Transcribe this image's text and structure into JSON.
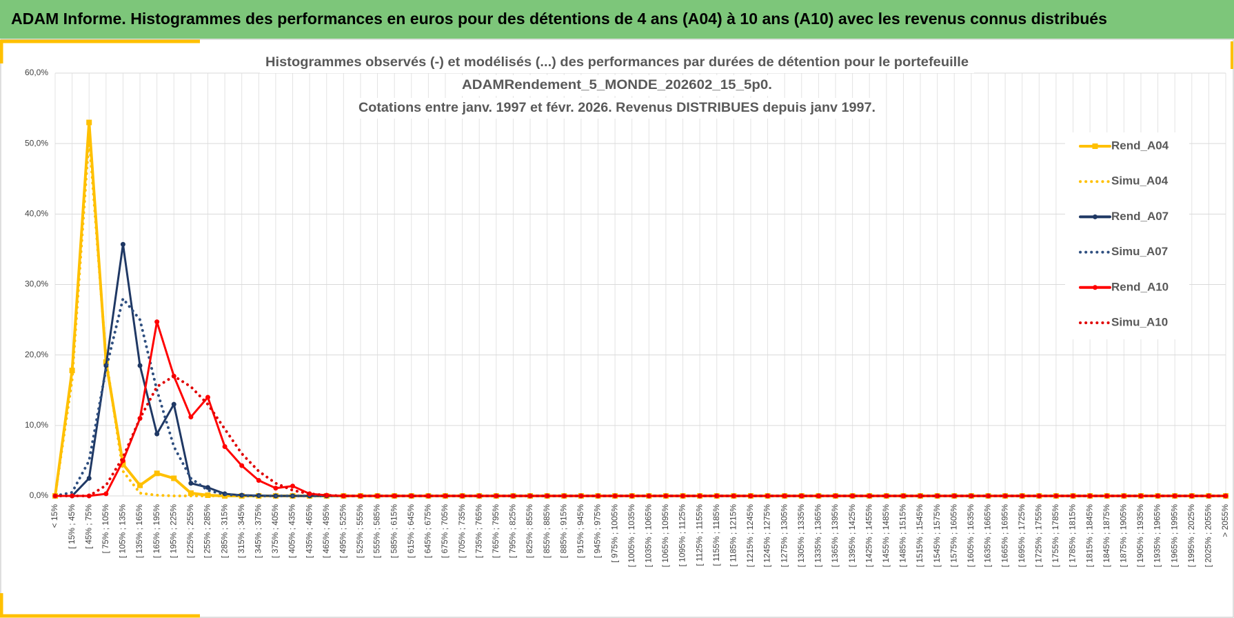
{
  "header": {
    "title": "ADAM Informe. Histogrammes des performances en euros pour des détentions de 4 ans (A04) à 10 ans (A10) avec les revenus connus distribués"
  },
  "chart_data": {
    "type": "line",
    "title": [
      "Histogrammes observés (-) et modélisés (...) des performances par durées de détention pour le portefeuille",
      "ADAMRendement_5_MONDE_202602_15_5p0.",
      "Cotations entre janv. 1997 et févr. 2026. Revenus DISTRIBUES depuis janv 1997."
    ],
    "categories": [
      "< 15%",
      "[ 15% ; 45%",
      "[ 45% ; 75%",
      "[ 75% ; 105%",
      "[ 105% ; 135%",
      "[ 135% ; 165%",
      "[ 165% ; 195%",
      "[ 195% ; 225%",
      "[ 225% ; 255%",
      "[ 255% ; 285%",
      "[ 285% ; 315%",
      "[ 315% ; 345%",
      "[ 345% ; 375%",
      "[ 375% ; 405%",
      "[ 405% ; 435%",
      "[ 435% ; 465%",
      "[ 465% ; 495%",
      "[ 495% ; 525%",
      "[ 525% ; 555%",
      "[ 555% ; 585%",
      "[ 585% ; 615%",
      "[ 615% ; 645%",
      "[ 645% ; 675%",
      "[ 675% ; 705%",
      "[ 705% ; 735%",
      "[ 735% ; 765%",
      "[ 765% ; 795%",
      "[ 795% ; 825%",
      "[ 825% ; 855%",
      "[ 855% ; 885%",
      "[ 885% ; 915%",
      "[ 915% ; 945%",
      "[ 945% ; 975%",
      "[ 975% ; 1005%",
      "[ 1005% ; 1035%",
      "[ 1035% ; 1065%",
      "[ 1065% ; 1095%",
      "[ 1095% ; 1125%",
      "[ 1125% ; 1155%",
      "[ 1155% ; 1185%",
      "[ 1185% ; 1215%",
      "[ 1215% ; 1245%",
      "[ 1245% ; 1275%",
      "[ 1275% ; 1305%",
      "[ 1305% ; 1335%",
      "[ 1335% ; 1365%",
      "[ 1365% ; 1395%",
      "[ 1395% ; 1425%",
      "[ 1425% ; 1455%",
      "[ 1455% ; 1485%",
      "[ 1485% ; 1515%",
      "[ 1515% ; 1545%",
      "[ 1545% ; 1575%",
      "[ 1575% ; 1605%",
      "[ 1605% ; 1635%",
      "[ 1635% ; 1665%",
      "[ 1665% ; 1695%",
      "[ 1695% ; 1725%",
      "[ 1725% ; 1755%",
      "[ 1755% ; 1785%",
      "[ 1785% ; 1815%",
      "[ 1815% ; 1845%",
      "[ 1845% ; 1875%",
      "[ 1875% ; 1905%",
      "[ 1905% ; 1935%",
      "[ 1935% ; 1965%",
      "[ 1965% ; 1995%",
      "[ 1995% ; 2025%",
      "[ 2025% ; 2055%",
      "> 2055%"
    ],
    "series": [
      {
        "name": "Rend_A04",
        "color": "#ffc000",
        "style": "solid",
        "marker": "square",
        "values": [
          0,
          17.8,
          53,
          19,
          4.5,
          1.5,
          3.2,
          2.5,
          0.4,
          0.1,
          0,
          0,
          0,
          0,
          0,
          0,
          0,
          0,
          0,
          0,
          0,
          0,
          0,
          0,
          0,
          0,
          0,
          0,
          0,
          0,
          0,
          0,
          0,
          0,
          0,
          0,
          0,
          0,
          0,
          0,
          0,
          0,
          0,
          0,
          0,
          0,
          0,
          0,
          0,
          0,
          0,
          0,
          0,
          0,
          0,
          0,
          0,
          0,
          0,
          0,
          0,
          0,
          0,
          0,
          0,
          0,
          0,
          0,
          0,
          0
        ]
      },
      {
        "name": "Simu_A04",
        "color": "#ffc000",
        "style": "dotted",
        "values": [
          0,
          16.5,
          51,
          19.5,
          3.5,
          0.4,
          0.1,
          0,
          0,
          0,
          0,
          0,
          0,
          0,
          0,
          0,
          0,
          0,
          0,
          0,
          0,
          0,
          0,
          0,
          0,
          0,
          0,
          0,
          0,
          0,
          0,
          0,
          0,
          0,
          0,
          0,
          0,
          0,
          0,
          0,
          0,
          0,
          0,
          0,
          0,
          0,
          0,
          0,
          0,
          0,
          0,
          0,
          0,
          0,
          0,
          0,
          0,
          0,
          0,
          0,
          0,
          0,
          0,
          0,
          0,
          0,
          0,
          0,
          0,
          0
        ]
      },
      {
        "name": "Rend_A07",
        "color": "#1f3864",
        "style": "solid",
        "marker": "circle",
        "values": [
          0,
          0,
          2.5,
          18.5,
          35.7,
          18.5,
          8.8,
          13,
          1.8,
          1.2,
          0.3,
          0.1,
          0.05,
          0,
          0,
          0,
          0,
          0,
          0,
          0,
          0,
          0,
          0,
          0,
          0,
          0,
          0,
          0,
          0,
          0,
          0,
          0,
          0,
          0,
          0,
          0,
          0,
          0,
          0,
          0,
          0,
          0,
          0,
          0,
          0,
          0,
          0,
          0,
          0,
          0,
          0,
          0,
          0,
          0,
          0,
          0,
          0,
          0,
          0,
          0,
          0,
          0,
          0,
          0,
          0,
          0,
          0,
          0,
          0,
          0
        ]
      },
      {
        "name": "Simu_A07",
        "color": "#2f4f80",
        "style": "dotted",
        "values": [
          0,
          0.5,
          5,
          18,
          28,
          25,
          15,
          7,
          2.5,
          0.8,
          0.2,
          0.05,
          0,
          0,
          0,
          0,
          0,
          0,
          0,
          0,
          0,
          0,
          0,
          0,
          0,
          0,
          0,
          0,
          0,
          0,
          0,
          0,
          0,
          0,
          0,
          0,
          0,
          0,
          0,
          0,
          0,
          0,
          0,
          0,
          0,
          0,
          0,
          0,
          0,
          0,
          0,
          0,
          0,
          0,
          0,
          0,
          0,
          0,
          0,
          0,
          0,
          0,
          0,
          0,
          0,
          0,
          0,
          0,
          0,
          0
        ]
      },
      {
        "name": "Rend_A10",
        "color": "#ff0000",
        "style": "solid",
        "marker": "circle",
        "values": [
          0,
          0,
          0,
          0.3,
          5,
          11,
          24.7,
          17,
          11.2,
          14,
          7,
          4.3,
          2.2,
          1.1,
          1.4,
          0.3,
          0.1,
          0,
          0,
          0,
          0,
          0,
          0,
          0,
          0,
          0,
          0,
          0,
          0,
          0,
          0,
          0,
          0,
          0,
          0,
          0,
          0,
          0,
          0,
          0,
          0,
          0,
          0,
          0,
          0,
          0,
          0,
          0,
          0,
          0,
          0,
          0,
          0,
          0,
          0,
          0,
          0,
          0,
          0,
          0,
          0,
          0,
          0,
          0,
          0,
          0,
          0,
          0,
          0,
          0
        ]
      },
      {
        "name": "Simu_A10",
        "color": "#e00000",
        "style": "dotted",
        "values": [
          0,
          0,
          0,
          1.5,
          5.5,
          11,
          15.5,
          17,
          15.5,
          13,
          9.5,
          6,
          3.5,
          1.8,
          0.8,
          0.3,
          0.1,
          0,
          0,
          0,
          0,
          0,
          0,
          0,
          0,
          0,
          0,
          0,
          0,
          0,
          0,
          0,
          0,
          0,
          0,
          0,
          0,
          0,
          0,
          0,
          0,
          0,
          0,
          0,
          0,
          0,
          0,
          0,
          0,
          0,
          0,
          0,
          0,
          0,
          0,
          0,
          0,
          0,
          0,
          0,
          0,
          0,
          0,
          0,
          0,
          0,
          0,
          0,
          0,
          0
        ]
      }
    ],
    "ylim": [
      0,
      60
    ],
    "yticks": [
      {
        "value": 0,
        "label": "0,0%"
      },
      {
        "value": 10,
        "label": "10,0%"
      },
      {
        "value": 20,
        "label": "20,0%"
      },
      {
        "value": 30,
        "label": "30,0%"
      },
      {
        "value": 40,
        "label": "40,0%"
      },
      {
        "value": 50,
        "label": "50,0%"
      },
      {
        "value": 60,
        "label": "60,0%"
      }
    ],
    "grid": true,
    "legend": "right"
  }
}
